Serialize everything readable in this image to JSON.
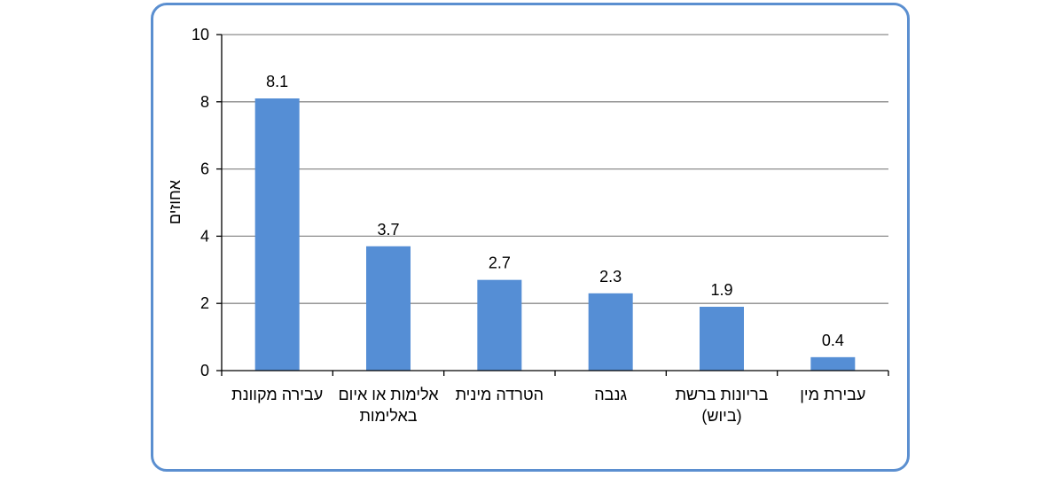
{
  "chart_data": {
    "type": "bar",
    "categories": [
      [
        "עבירה מקוונת"
      ],
      [
        "אלימות או איום",
        "באלימות"
      ],
      [
        "הטרדה מינית"
      ],
      [
        "גנבה"
      ],
      [
        "בריונות ברשת",
        "(ביוש)"
      ],
      [
        "עבירת מין"
      ]
    ],
    "values": [
      8.1,
      3.7,
      2.7,
      2.3,
      1.9,
      0.4
    ],
    "value_labels": [
      "8.1",
      "3.7",
      "2.7",
      "2.3",
      "1.9",
      "0.4"
    ],
    "ylabel": "אחוזים",
    "ylim": [
      0,
      10
    ],
    "yticks": [
      0,
      2,
      4,
      6,
      8,
      10
    ],
    "grid": true,
    "bar_color": "#558ed5",
    "grid_color": "#8c8c8c",
    "frame_color": "#5b8fd0"
  }
}
